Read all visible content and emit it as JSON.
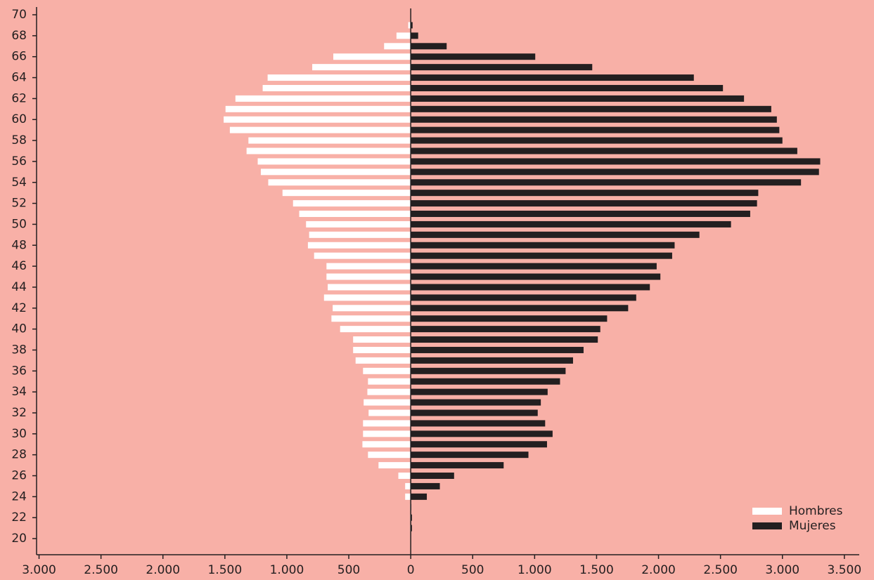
{
  "chart_data": {
    "type": "bar",
    "orientation": "horizontal",
    "y": [
      21,
      22,
      23,
      24,
      25,
      26,
      27,
      28,
      29,
      30,
      31,
      32,
      33,
      34,
      35,
      36,
      37,
      38,
      39,
      40,
      41,
      42,
      43,
      44,
      45,
      46,
      47,
      48,
      49,
      50,
      51,
      52,
      53,
      54,
      55,
      56,
      57,
      58,
      59,
      60,
      61,
      62,
      63,
      64,
      65,
      66,
      67,
      68,
      69
    ],
    "series": [
      {
        "name": "Hombres",
        "color": "#ffffff",
        "values": [
          -5,
          -5,
          -5,
          -45,
          -45,
          -100,
          -260,
          -345,
          -390,
          -385,
          -385,
          -340,
          -380,
          -350,
          -345,
          -385,
          -445,
          -465,
          -465,
          -570,
          -640,
          -630,
          -700,
          -670,
          -680,
          -680,
          -780,
          -830,
          -820,
          -845,
          -900,
          -950,
          -1035,
          -1150,
          -1210,
          -1235,
          -1325,
          -1310,
          -1460,
          -1510,
          -1495,
          -1415,
          -1195,
          -1155,
          -795,
          -625,
          -215,
          -115,
          -20
        ]
      },
      {
        "name": "Mujeres",
        "color": "#231f20",
        "values": [
          10,
          10,
          5,
          130,
          235,
          350,
          750,
          950,
          1100,
          1145,
          1085,
          1025,
          1050,
          1105,
          1205,
          1250,
          1310,
          1395,
          1510,
          1530,
          1585,
          1755,
          1820,
          1930,
          2015,
          1985,
          2110,
          2130,
          2330,
          2585,
          2740,
          2795,
          2805,
          3150,
          3295,
          3305,
          3120,
          3000,
          2975,
          2955,
          2910,
          2690,
          2520,
          2285,
          1465,
          1005,
          290,
          60,
          15
        ]
      }
    ],
    "xlim": [
      -3020,
      3620
    ],
    "xticks": [
      {
        "value": -3000,
        "label": "3.000"
      },
      {
        "value": -2500,
        "label": "2.500"
      },
      {
        "value": -2000,
        "label": "2.000"
      },
      {
        "value": -1500,
        "label": "1.500"
      },
      {
        "value": -1000,
        "label": "1.000"
      },
      {
        "value": -500,
        "label": "500"
      },
      0,
      500,
      {
        "value": 1000,
        "label": "1.000"
      },
      {
        "value": 1500,
        "label": "1.500"
      },
      {
        "value": 2000,
        "label": "2.000"
      },
      {
        "value": 2500,
        "label": "2.500"
      },
      {
        "value": 3000,
        "label": "3.000"
      },
      {
        "value": 3500,
        "label": "3.500"
      }
    ],
    "ylim": [
      18.46,
      70.74
    ],
    "yticks": [
      20,
      22,
      24,
      26,
      28,
      30,
      32,
      34,
      36,
      38,
      40,
      42,
      44,
      46,
      48,
      50,
      52,
      54,
      56,
      58,
      60,
      62,
      64,
      66,
      68,
      70
    ],
    "legend": "lower right",
    "background": "#f8b0a7"
  }
}
